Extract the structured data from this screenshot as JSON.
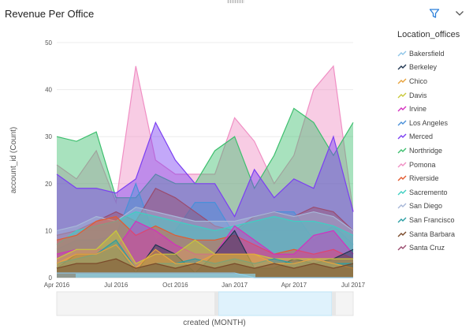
{
  "header": {
    "title": "Revenue Per Office"
  },
  "icons": {
    "filter": "filter-icon",
    "collapse": "chevron-down-icon",
    "drag": "drag-handle-icon"
  },
  "colors": {
    "accent": "#2b7fd9",
    "slider_window": "#dff2fc"
  },
  "chart_data": {
    "type": "area",
    "xlabel": "created (MONTH)",
    "ylabel": "account_id (Count)",
    "ylim": [
      0,
      50
    ],
    "yticks": [
      0,
      10,
      20,
      30,
      40,
      50
    ],
    "x": [
      "2016-04",
      "2016-05",
      "2016-06",
      "2016-07",
      "2016-08",
      "2016-09",
      "2016-10",
      "2016-11",
      "2016-12",
      "2017-01",
      "2017-02",
      "2017-03",
      "2017-04",
      "2017-05",
      "2017-06",
      "2017-07"
    ],
    "xticks": [
      {
        "at": "2016-04",
        "label": "Apr 2016"
      },
      {
        "at": "2016-07",
        "label": "Jul 2016"
      },
      {
        "at": "2016-10",
        "label": "Oct 2016"
      },
      {
        "at": "2017-01",
        "label": "Jan 2017"
      },
      {
        "at": "2017-04",
        "label": "Apr 2017"
      },
      {
        "at": "2017-07",
        "label": "Jul 2017"
      }
    ],
    "grid": true,
    "legend_title": "Location_offices",
    "legend_position": "right",
    "series": [
      {
        "name": "Bakersfield",
        "color": "#8ec5e8",
        "values": [
          1,
          1,
          1,
          1,
          1,
          1,
          1,
          1,
          1,
          1,
          0,
          0,
          0,
          0,
          0,
          0
        ]
      },
      {
        "name": "Berkeley",
        "color": "#1f3550",
        "values": [
          2,
          5,
          5,
          7,
          1,
          7,
          5,
          1,
          5,
          10,
          2,
          2,
          4,
          3,
          4,
          6
        ]
      },
      {
        "name": "Chico",
        "color": "#e8a33d",
        "values": [
          3,
          5,
          5,
          7,
          2,
          6,
          3,
          3,
          5,
          5,
          5,
          3,
          3,
          4,
          3,
          2
        ]
      },
      {
        "name": "Davis",
        "color": "#c9c93a",
        "values": [
          4,
          6,
          6,
          10,
          3,
          5,
          5,
          8,
          5,
          5,
          5,
          4,
          4,
          4,
          4,
          4
        ]
      },
      {
        "name": "Irvine",
        "color": "#d42fbf",
        "values": [
          5,
          6,
          6,
          6,
          12,
          10,
          7,
          5,
          5,
          11,
          8,
          5,
          5,
          9,
          10,
          5
        ]
      },
      {
        "name": "Los Angeles",
        "color": "#4a90d9",
        "values": [
          6,
          8,
          8,
          9,
          20,
          8,
          10,
          16,
          16,
          9,
          13,
          14,
          14,
          8,
          11,
          7
        ]
      },
      {
        "name": "Merced",
        "color": "#7b3ff2",
        "values": [
          22,
          19,
          19,
          18,
          21,
          33,
          25,
          20,
          20,
          13,
          23,
          17,
          21,
          19,
          30,
          14
        ]
      },
      {
        "name": "Northridge",
        "color": "#3dbf6e",
        "values": [
          30,
          29,
          31,
          17,
          17,
          22,
          20,
          20,
          27,
          30,
          19,
          26,
          36,
          33,
          26,
          33
        ]
      },
      {
        "name": "Pomona",
        "color": "#f08fc4",
        "values": [
          24,
          21,
          27,
          16,
          45,
          25,
          22,
          22,
          22,
          34,
          29,
          20,
          26,
          40,
          45,
          14
        ]
      },
      {
        "name": "Riverside",
        "color": "#e35a2f",
        "values": [
          8,
          9,
          12,
          13,
          9,
          11,
          9,
          8,
          8,
          9,
          7,
          5,
          6,
          5,
          6,
          4
        ]
      },
      {
        "name": "Sacremento",
        "color": "#3fcfc2",
        "values": [
          7,
          10,
          11,
          12,
          14,
          13,
          12,
          11,
          10,
          11,
          12,
          13,
          12,
          12,
          11,
          9
        ]
      },
      {
        "name": "San Diego",
        "color": "#a7b7d8",
        "values": [
          10,
          11,
          13,
          12,
          15,
          14,
          13,
          12,
          12,
          12,
          13,
          14,
          13,
          14,
          13,
          10
        ]
      },
      {
        "name": "San Francisco",
        "color": "#2a9ea3",
        "values": [
          3,
          4,
          5,
          8,
          2,
          3,
          3,
          4,
          3,
          4,
          3,
          4,
          3,
          4,
          3,
          3
        ]
      },
      {
        "name": "Santa Barbara",
        "color": "#7a4a2a",
        "values": [
          2,
          3,
          3,
          4,
          2,
          3,
          2,
          3,
          2,
          3,
          2,
          3,
          2,
          3,
          2,
          3
        ]
      },
      {
        "name": "Santa Cruz",
        "color": "#9a4b6e",
        "values": [
          9,
          10,
          12,
          14,
          12,
          19,
          17,
          14,
          11,
          10,
          13,
          14,
          13,
          15,
          14,
          10
        ]
      }
    ]
  }
}
